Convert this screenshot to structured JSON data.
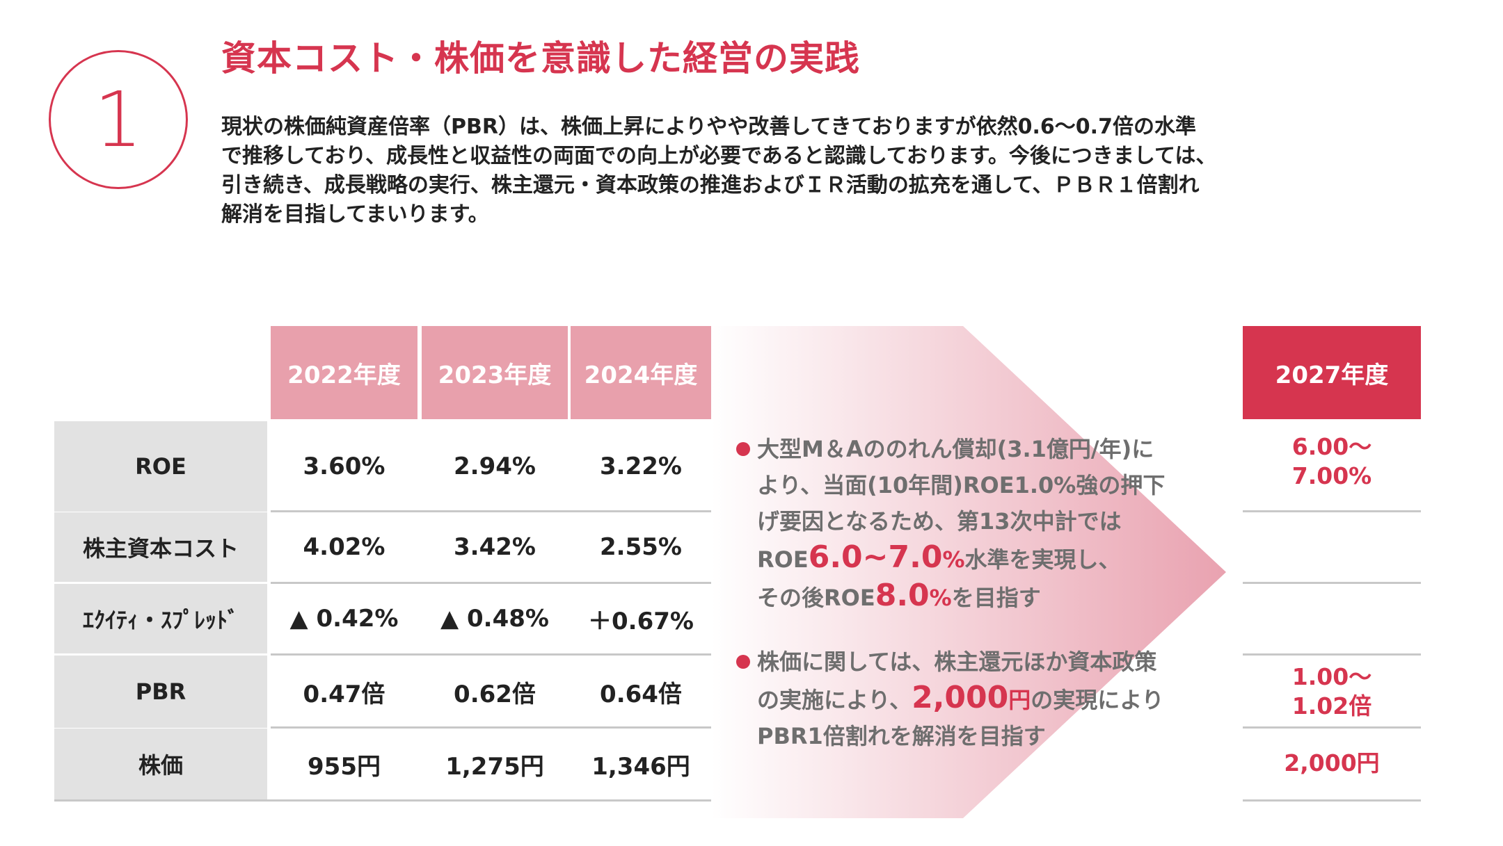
{
  "header": {
    "number": "1",
    "title": "資本コスト・株価を意識した経営の実践",
    "intro_lines": [
      "現状の株価純資産倍率（PBR）は、株価上昇によりやや改善してきておりますが依然0.6～0.7倍の水準",
      "で推移しており、成長性と収益性の両面での向上が必要であると認識しております。今後につきましては、",
      "引き続き、成長戦略の実行、株主還元・資本政策の推進およびＩＲ活動の拡充を通して、ＰＢＲ１倍割れ",
      "解消を目指してまいります。"
    ]
  },
  "table": {
    "years": [
      "2022年度",
      "2023年度",
      "2024年度"
    ],
    "target_year": "2027年度",
    "rows": [
      {
        "label": "ROE",
        "values": [
          "3.60%",
          "2.94%",
          "3.22%"
        ],
        "target": [
          "6.00～",
          "7.00%"
        ]
      },
      {
        "label": "株主資本コスト",
        "values": [
          "4.02%",
          "3.42%",
          "2.55%"
        ],
        "target": []
      },
      {
        "label": "ｴｸｲﾃｨ・ｽﾌﾟﾚｯﾄﾞ",
        "values": [
          "▲ 0.42%",
          "▲ 0.48%",
          "＋0.67%"
        ],
        "target": []
      },
      {
        "label": "PBR",
        "values": [
          "0.47倍",
          "0.62倍",
          "0.64倍"
        ],
        "target": [
          "1.00～",
          "1.02倍"
        ]
      },
      {
        "label": "株価",
        "values": [
          "955円",
          "1,275円",
          "1,346円"
        ],
        "target": [
          "2,000円"
        ]
      }
    ]
  },
  "bullets": {
    "b1": {
      "line1": "大型M＆Aののれん償却(3.1億円/年)に",
      "line2": "より、当面(10年間)ROE1.0%強の押下",
      "line3": "げ要因となるため、第13次中計では",
      "line4_pre": "ROE",
      "line4_hl": "6.0~7.0",
      "line4_pct": "%",
      "line4_post": "水準を実現し、",
      "line5_pre": "その後ROE",
      "line5_hl": "8.0",
      "line5_pct": "%",
      "line5_post": "を目指す"
    },
    "b2": {
      "line1": "株価に関しては、株主還元ほか資本政策",
      "line2_pre": "の実施により、",
      "line2_hl": "2,000",
      "line2_unit": "円",
      "line2_post": "の実現により",
      "line3": "PBR1倍割れを解消を目指す"
    }
  },
  "colors": {
    "accent": "#d6354f",
    "header_pink": "#e8a0ac",
    "row_label_bg": "#e2e2e2",
    "bullet_text": "#6e6e6e"
  }
}
